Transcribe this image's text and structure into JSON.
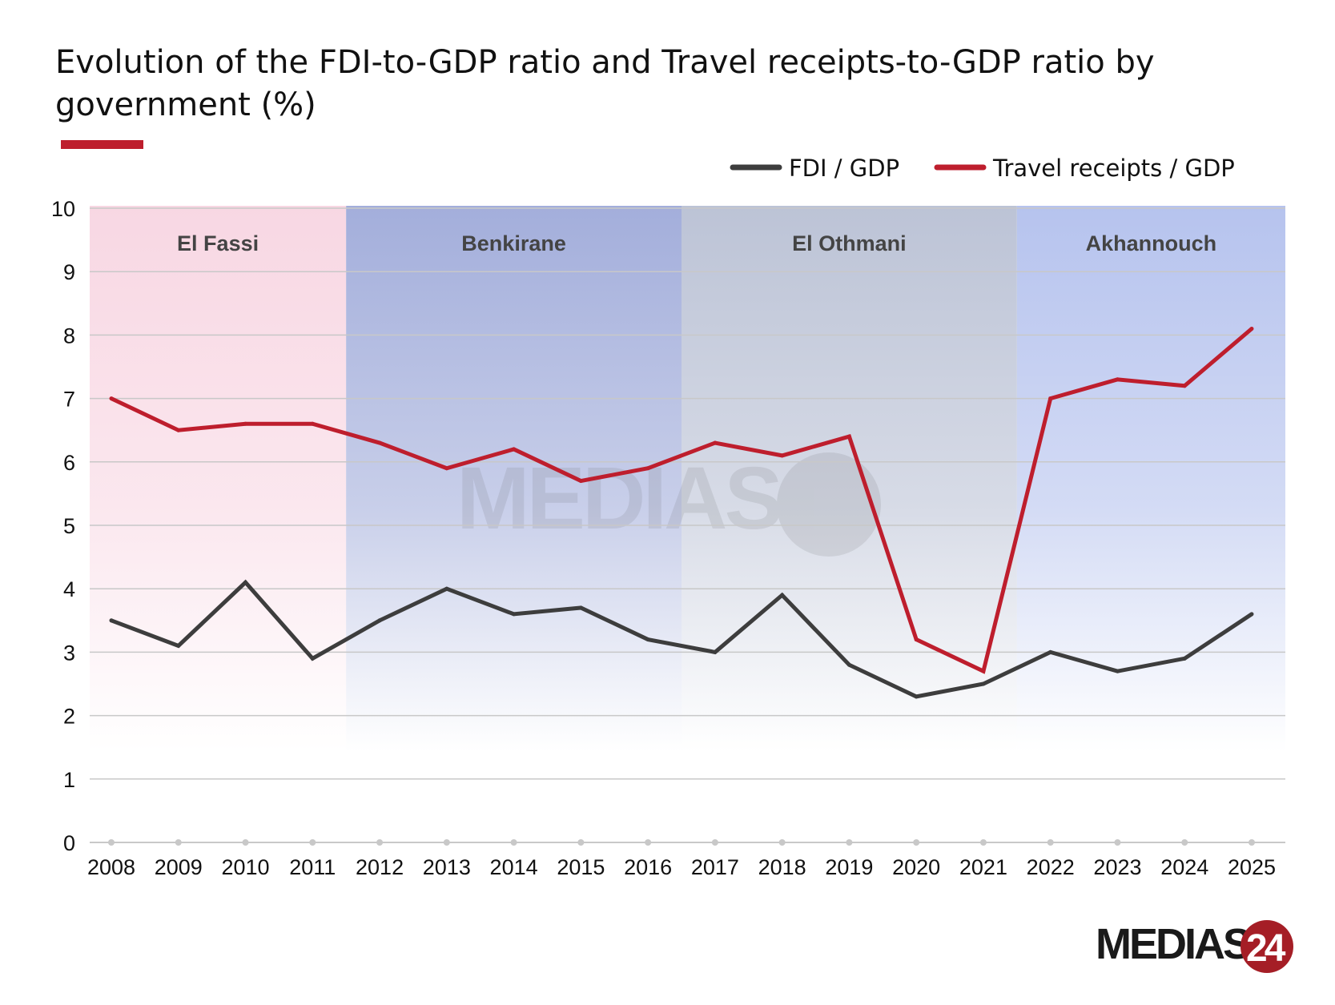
{
  "chart_data": {
    "type": "line",
    "title": "Evolution of the FDI-to-GDP ratio and Travel receipts-to-GDP ratio by government (%)",
    "xlabel": "",
    "ylabel": "",
    "x": [
      "2008",
      "2009",
      "2010",
      "2011",
      "2012",
      "2013",
      "2014",
      "2015",
      "2016",
      "2017",
      "2018",
      "2019",
      "2020",
      "2021",
      "2022",
      "2023",
      "2024",
      "2025"
    ],
    "ylim": [
      0,
      10
    ],
    "yticks": [
      "0",
      "1",
      "2",
      "3",
      "4",
      "5",
      "6",
      "7",
      "8",
      "9",
      "10"
    ],
    "grid": true,
    "legend_position": "top-right",
    "series": [
      {
        "name": "FDI / GDP",
        "color": "#3d3d3d",
        "values": [
          3.5,
          3.1,
          4.1,
          2.9,
          3.5,
          4.0,
          3.6,
          3.7,
          3.2,
          3.0,
          3.9,
          2.8,
          2.3,
          2.5,
          3.0,
          2.7,
          2.9,
          3.6
        ]
      },
      {
        "name": "Travel receipts / GDP",
        "color": "#be1e2d",
        "values": [
          7.0,
          6.5,
          6.6,
          6.6,
          6.3,
          5.9,
          6.2,
          5.7,
          5.9,
          6.3,
          6.1,
          6.4,
          3.2,
          2.7,
          7.0,
          7.3,
          7.2,
          8.1
        ]
      }
    ],
    "bands": [
      {
        "label": "El Fassi",
        "from": "2008",
        "to": "2011",
        "color": "#f8d7e3"
      },
      {
        "label": "Benkirane",
        "from": "2012",
        "to": "2016",
        "color": "#a3aedb"
      },
      {
        "label": "El Othmani",
        "from": "2017",
        "to": "2021",
        "color": "#bcc3d6"
      },
      {
        "label": "Akhannouch",
        "from": "2022",
        "to": "2025",
        "color": "#b6c3ee"
      }
    ]
  },
  "branding": {
    "logo": "MEDIAS24",
    "watermark": "MEDIAS24"
  }
}
